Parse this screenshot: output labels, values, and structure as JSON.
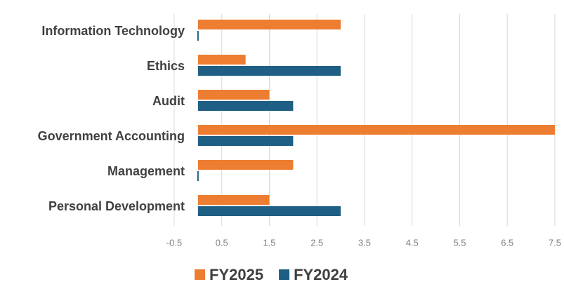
{
  "chart_data": {
    "type": "barh",
    "categories": [
      "Information Technology",
      "Ethics",
      "Audit",
      "Government Accounting",
      "Management",
      "Personal Development"
    ],
    "series": [
      {
        "name": "FY2025",
        "color": "#ed7d31",
        "values": [
          3,
          1,
          1.5,
          7.5,
          2,
          1.5
        ]
      },
      {
        "name": "FY2024",
        "color": "#1f5f85",
        "values": [
          0,
          3,
          2,
          2,
          0,
          3
        ]
      }
    ],
    "xlim": [
      -0.5,
      7.5
    ],
    "xticks": [
      -0.5,
      0.5,
      1.5,
      2.5,
      3.5,
      4.5,
      5.5,
      6.5,
      7.5
    ],
    "grid": true,
    "legend": "bottom"
  }
}
